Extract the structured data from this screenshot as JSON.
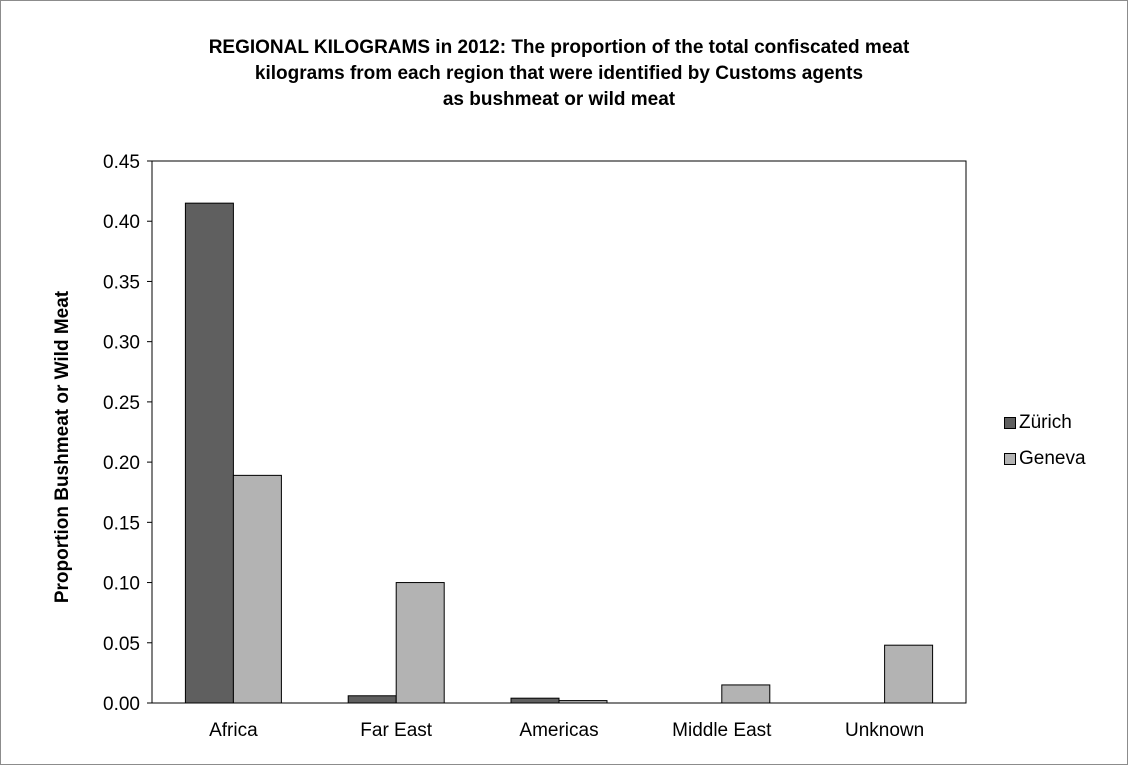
{
  "chart_data": {
    "type": "bar",
    "title_lines": [
      "REGIONAL KILOGRAMS in 2012: The proportion of the total confiscated meat",
      "kilograms from each region that were identified by Customs agents",
      "as bushmeat or wild meat"
    ],
    "xlabel": "",
    "ylabel": "Proportion Bushmeat or Wild Meat",
    "categories": [
      "Africa",
      "Far East",
      "Americas",
      "Middle East",
      "Unknown"
    ],
    "series": [
      {
        "name": "Zürich",
        "color": "#5f5f5f",
        "values": [
          0.415,
          0.006,
          0.004,
          0,
          0
        ]
      },
      {
        "name": "Geneva",
        "color": "#b3b3b3",
        "values": [
          0.189,
          0.1,
          0.002,
          0.015,
          0.048
        ]
      }
    ],
    "ylim": [
      0,
      0.45
    ],
    "ytick_step": 0.05,
    "ytick_labels": [
      "0.00",
      "0.05",
      "0.10",
      "0.15",
      "0.20",
      "0.25",
      "0.30",
      "0.35",
      "0.40",
      "0.45"
    ],
    "grid": false,
    "legend_position": "right"
  }
}
